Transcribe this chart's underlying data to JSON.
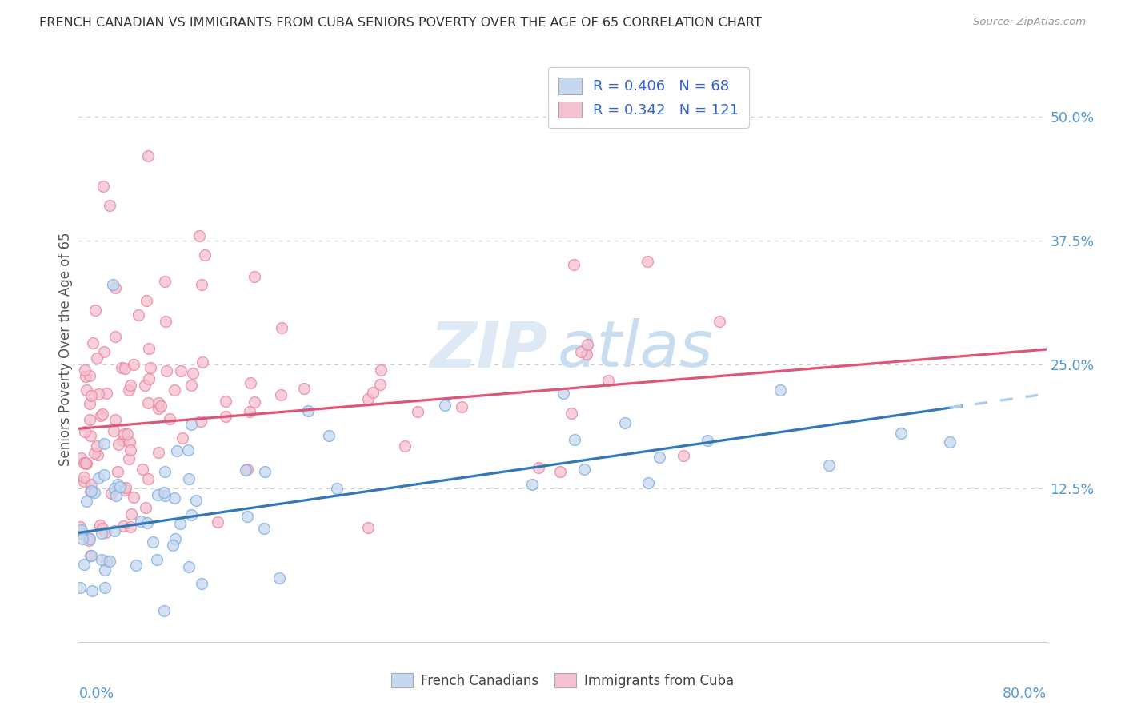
{
  "title": "FRENCH CANADIAN VS IMMIGRANTS FROM CUBA SENIORS POVERTY OVER THE AGE OF 65 CORRELATION CHART",
  "source": "Source: ZipAtlas.com",
  "ylabel": "Seniors Poverty Over the Age of 65",
  "ytick_labels": [
    "12.5%",
    "25.0%",
    "37.5%",
    "50.0%"
  ],
  "ytick_values": [
    0.125,
    0.25,
    0.375,
    0.5
  ],
  "xlim": [
    0.0,
    0.8
  ],
  "ylim": [
    -0.03,
    0.56
  ],
  "blue_R": 0.406,
  "blue_N": 68,
  "pink_R": 0.342,
  "pink_N": 121,
  "blue_fill_color": "#c5d8f0",
  "blue_edge_color": "#7aabdd",
  "pink_fill_color": "#f5c0d0",
  "pink_edge_color": "#e8809a",
  "blue_line_color": "#3377bb",
  "pink_line_color": "#dd5577",
  "dashed_line_color": "#aaccee",
  "watermark_zip_color": "#dde8f5",
  "watermark_atlas_color": "#c8ddf0",
  "title_color": "#333333",
  "source_color": "#999999",
  "axis_label_color": "#5599cc",
  "legend_text_color": "#3366cc",
  "background_color": "#ffffff",
  "grid_color": "#cccccc",
  "legend_label_blue": "French Canadians",
  "legend_label_pink": "Immigrants from Cuba",
  "blue_line_intercept": 0.08,
  "blue_line_slope": 0.175,
  "pink_line_intercept": 0.185,
  "pink_line_slope": 0.1
}
